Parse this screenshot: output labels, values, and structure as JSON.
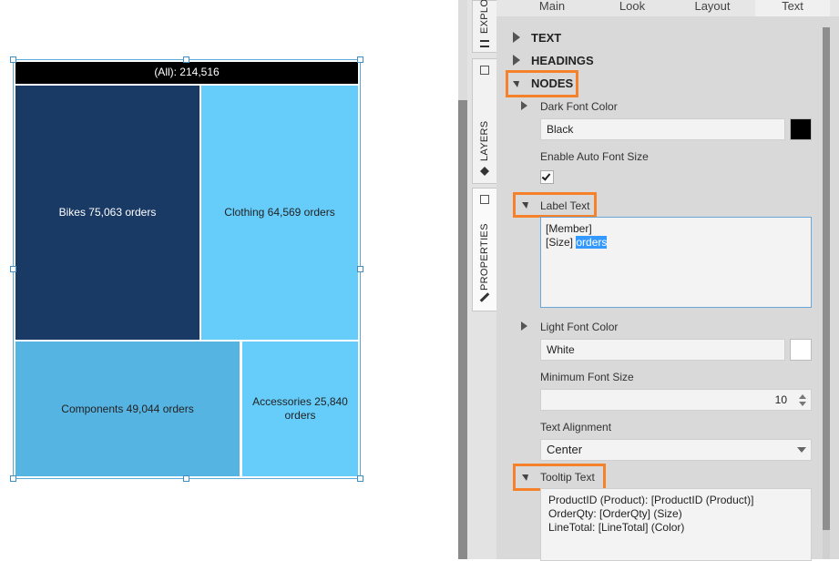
{
  "treemap": {
    "header_label": "(All): 214,516",
    "nodes": [
      {
        "id": "bikes",
        "label": "Bikes 75,063 orders",
        "value": 75063,
        "color": "#1a3a66",
        "text_color": "#ffffff"
      },
      {
        "id": "clothing",
        "label": "Clothing 64,569 orders",
        "value": 64569,
        "color": "#66cdfb",
        "text_color": "#222222"
      },
      {
        "id": "components",
        "label": "Components 49,044 orders",
        "value": 49044,
        "color": "#56b4e2",
        "text_color": "#222222"
      },
      {
        "id": "accessories",
        "label": "Accessories 25,840 orders",
        "value": 25840,
        "color": "#66cdfb",
        "text_color": "#222222"
      }
    ]
  },
  "side_tabs": {
    "explorer": "EXPLO",
    "layers": "LAYERS",
    "properties": "PROPERTIES"
  },
  "panel": {
    "tabs": [
      {
        "label": "Main",
        "active": false
      },
      {
        "label": "Look",
        "active": false
      },
      {
        "label": "Layout",
        "active": false
      },
      {
        "label": "Text",
        "active": true
      }
    ],
    "sections": {
      "text": "TEXT",
      "headings": "HEADINGS",
      "nodes": "NODES"
    },
    "dark_font_color": {
      "label": "Dark Font Color",
      "value": "Black",
      "swatch": "#000000"
    },
    "enable_auto_font_size": {
      "label": "Enable Auto Font Size",
      "checked": true
    },
    "label_text": {
      "label": "Label Text",
      "line1": "[Member]",
      "line2_prefix": "[Size]",
      "line2_selected": "orders"
    },
    "light_font_color": {
      "label": "Light Font Color",
      "value": "White",
      "swatch": "#ffffff"
    },
    "minimum_font_size": {
      "label": "Minimum Font Size",
      "value": "10"
    },
    "text_alignment": {
      "label": "Text Alignment",
      "value": "Center"
    },
    "tooltip_text": {
      "label": "Tooltip Text",
      "lines": [
        "ProductID (Product): [ProductID (Product)]",
        "OrderQty: [OrderQty] (Size)",
        "LineTotal: [LineTotal] (Color)"
      ]
    }
  },
  "colors": {
    "highlight_orange": "#f5822a",
    "selection_blue": "#3399ff"
  }
}
